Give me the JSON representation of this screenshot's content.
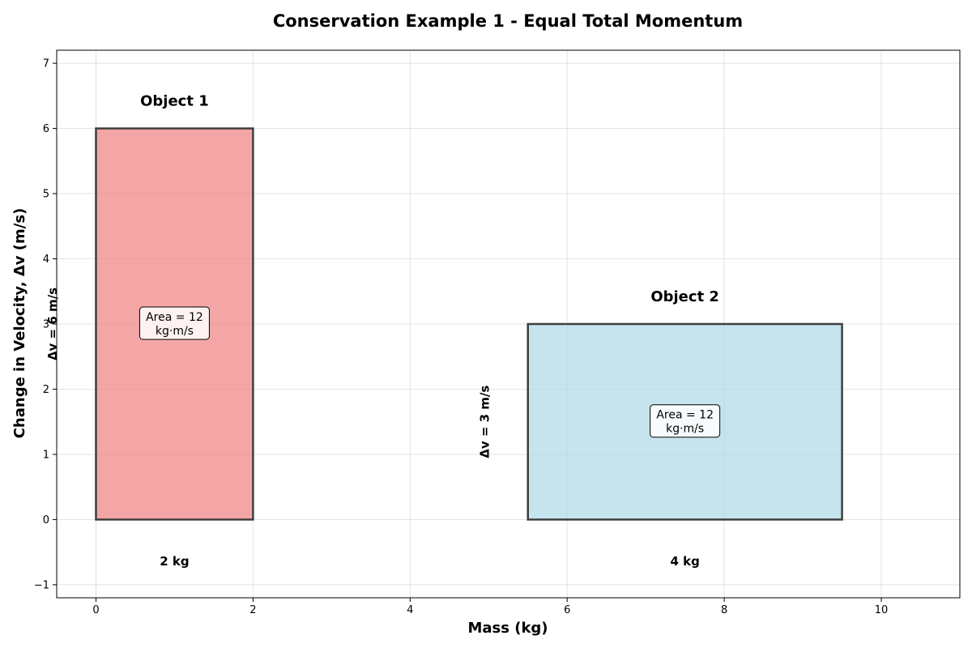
{
  "chart_data": {
    "type": "bar",
    "title": "Conservation Example 1 - Equal Total Momentum",
    "xlabel": "Mass (kg)",
    "ylabel": "Change in Velocity, Δv (m/s)",
    "xlim": [
      -0.5,
      11
    ],
    "ylim": [
      -1.2,
      7.2
    ],
    "xticks": [
      0,
      2,
      4,
      6,
      8,
      10
    ],
    "xtick_labels": [
      "0",
      "2",
      "4",
      "6",
      "8",
      "10"
    ],
    "yticks": [
      -1,
      0,
      1,
      2,
      3,
      4,
      5,
      6,
      7
    ],
    "ytick_labels": [
      "−1",
      "0",
      "1",
      "2",
      "3",
      "4",
      "5",
      "6",
      "7"
    ],
    "grid": true,
    "objects": [
      {
        "name": "Object 1",
        "x_start": 0,
        "mass": 2,
        "delta_v": 6,
        "mass_label": "2 kg",
        "dv_label": "Δv = 6 m/s",
        "area_line1": "Area = 12",
        "area_line2": "kg·m/s",
        "color": "#f08080",
        "fill_opacity": 0.7,
        "edge_color": "#3f3f3f"
      },
      {
        "name": "Object 2",
        "x_start": 5.5,
        "mass": 4,
        "delta_v": 3,
        "mass_label": "4 kg",
        "dv_label": "Δv = 3 m/s",
        "area_line1": "Area = 12",
        "area_line2": "kg·m/s",
        "color": "#add8e6",
        "fill_opacity": 0.7,
        "edge_color": "#3f3f3f"
      }
    ]
  }
}
